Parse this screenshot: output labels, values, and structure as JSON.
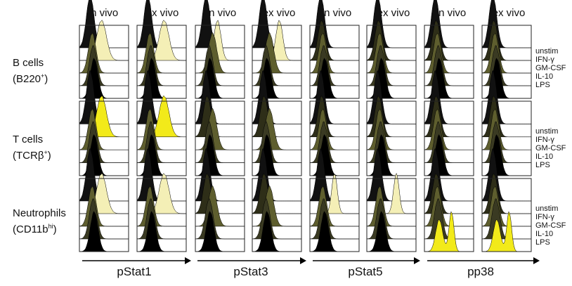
{
  "column_headers": [
    "in vivo",
    "ex vivo",
    "in vivo",
    "ex vivo",
    "in vivo",
    "ex vivo",
    "in vivo",
    "ex vivo"
  ],
  "rows": [
    {
      "label": "B cells",
      "marker_base": "(B220",
      "marker_sup": "+",
      "marker_end": ")"
    },
    {
      "label": "T cells",
      "marker_base": "(TCRβ",
      "marker_sup": "+",
      "marker_end": ")"
    },
    {
      "label": "Neutrophils",
      "marker_base": "(CD11b",
      "marker_sup": "hi",
      "marker_end": ")"
    }
  ],
  "conditions": [
    "unstim",
    "IFN-γ",
    "GM-CSF",
    "IL-10",
    "LPS"
  ],
  "phospho_proteins": [
    "pStat1",
    "pStat3",
    "pStat5",
    "pp38"
  ],
  "colors": {
    "unstim": "#111111",
    "IFN-γ": "#f6f2c2",
    "GM-CSF": "#5e5e2e",
    "IL-10": "#3a3a22",
    "LPS": "#000000",
    "highlight_strong": "#f2ea1a",
    "highlight_pale": "#f4efb6",
    "frame": "#222222"
  }
}
